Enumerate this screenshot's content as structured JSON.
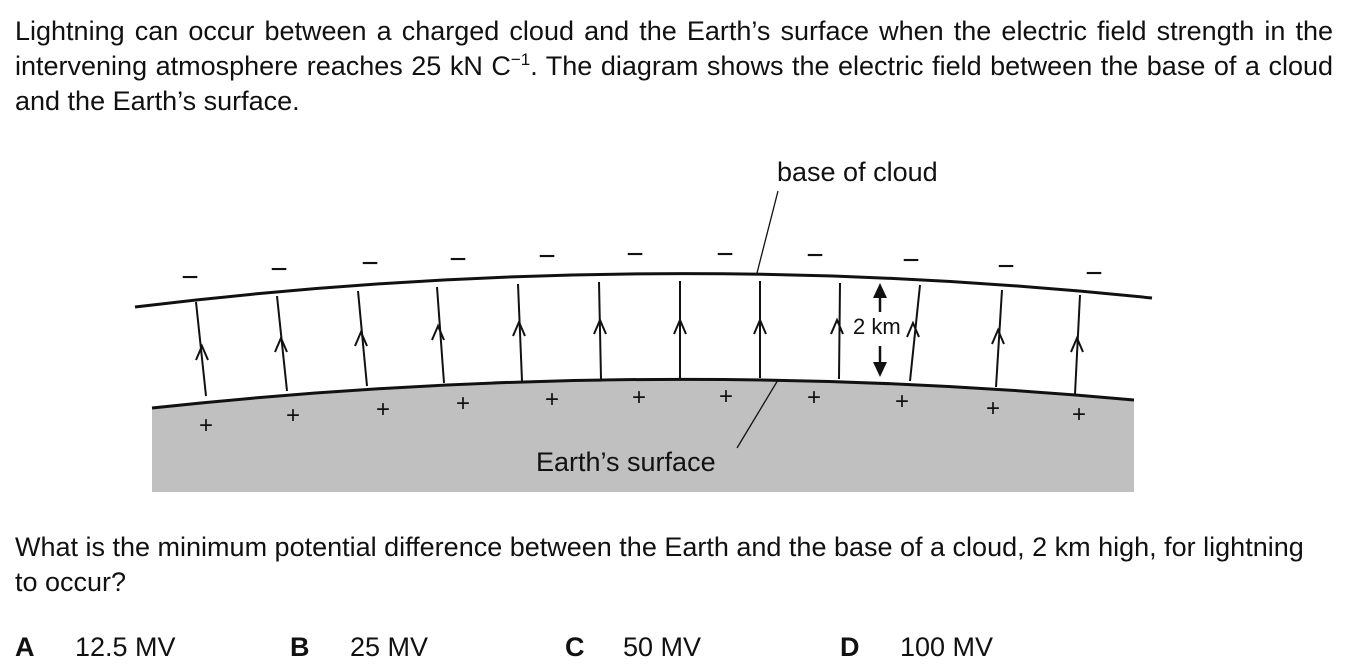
{
  "intro": {
    "part1": "Lightning can occur between a charged cloud and the Earth’s surface when the electric field strength in the intervening atmosphere reaches 25 kN C",
    "superscript": "−1",
    "part2": ". The diagram shows the electric field between the base of a cloud and the Earth’s surface."
  },
  "diagram": {
    "cloud_label": "base of cloud",
    "earth_label": "Earth’s surface",
    "height_label": "2 km",
    "negative_sign": "−",
    "positive_sign": "+"
  },
  "question": "What is the minimum potential difference between the Earth and the base of a cloud, 2 km high, for lightning to occur?",
  "options": [
    {
      "letter": "A",
      "value": "12.5 MV"
    },
    {
      "letter": "B",
      "value": "25 MV"
    },
    {
      "letter": "C",
      "value": "50 MV"
    },
    {
      "letter": "D",
      "value": "100 MV"
    }
  ]
}
